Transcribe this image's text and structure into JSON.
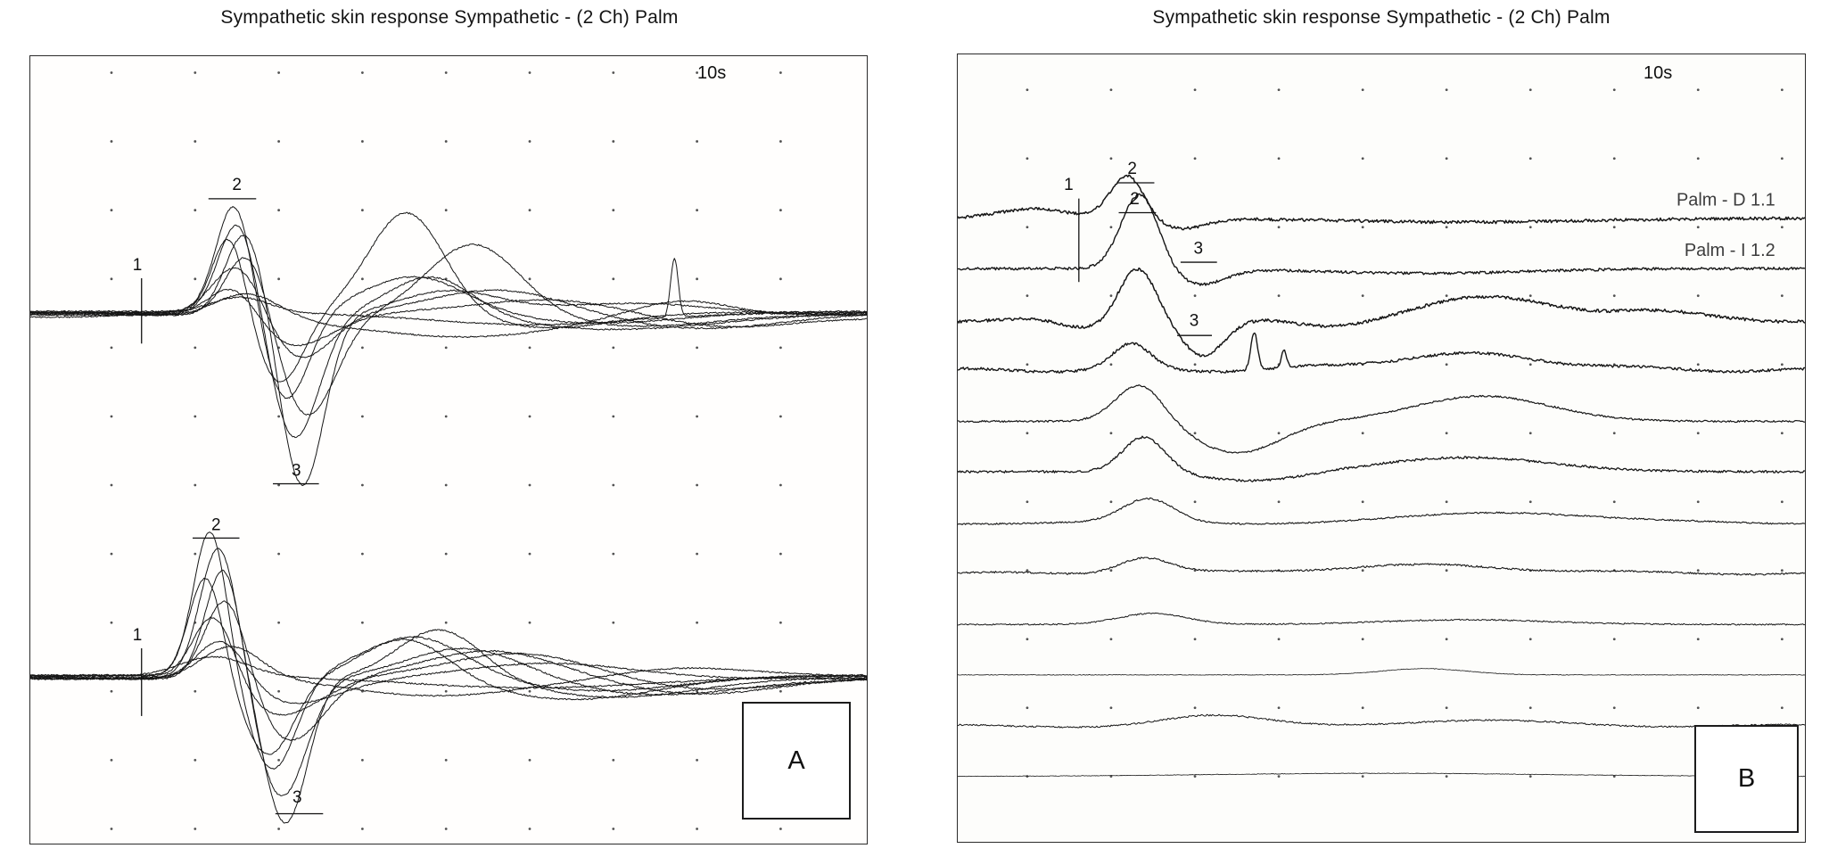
{
  "figure": {
    "background": "#ffffff",
    "trace_color": "#161616",
    "dot_color": "#343434"
  },
  "chart_data": [
    {
      "type": "line",
      "panel_label": "A",
      "title": "Sympathetic skin response Sympathetic - (2 Ch) Palm",
      "time_scale_label": "10s",
      "x_axis": {
        "span_seconds": 10,
        "divisions": 10
      },
      "grid": {
        "cols": 9,
        "rows": 12,
        "x0": 0.097,
        "dx": 0.1,
        "y0": 0.021,
        "dy": 0.0873,
        "dot_color": "#343434"
      },
      "stroke": "#161616",
      "markers": [
        {
          "label": "1",
          "x": 0.128,
          "y": 0.272,
          "line": {
            "type": "v",
            "x": 0.133,
            "y1": 0.282,
            "y2": 0.365
          }
        },
        {
          "label": "2",
          "x": 0.247,
          "y": 0.17,
          "line": {
            "type": "h",
            "x1": 0.213,
            "x2": 0.27,
            "y": 0.181
          }
        },
        {
          "label": "3",
          "x": 0.318,
          "y": 0.533,
          "line": {
            "type": "h",
            "x1": 0.29,
            "x2": 0.345,
            "y": 0.543
          }
        },
        {
          "label": "1",
          "x": 0.128,
          "y": 0.742,
          "line": {
            "type": "v",
            "x": 0.133,
            "y1": 0.752,
            "y2": 0.838
          }
        },
        {
          "label": "2",
          "x": 0.222,
          "y": 0.602,
          "line": {
            "type": "h",
            "x1": 0.194,
            "x2": 0.25,
            "y": 0.612
          }
        },
        {
          "label": "3",
          "x": 0.319,
          "y": 0.948,
          "line": {
            "type": "h",
            "x1": 0.293,
            "x2": 0.35,
            "y": 0.962
          }
        }
      ],
      "traces": [
        {
          "base": 0.324,
          "w": 1.0,
          "noise": 0.8,
          "seed": 11,
          "comp": [
            [
              0.245,
              0.022,
              -0.143
            ],
            [
              0.305,
              0.028,
              0.115
            ],
            [
              0.46,
              0.06,
              -0.045
            ],
            [
              0.68,
              0.1,
              0.015
            ]
          ]
        },
        {
          "base": 0.327,
          "w": 1.0,
          "noise": 0.8,
          "seed": 12,
          "comp": [
            [
              0.25,
              0.024,
              -0.125
            ],
            [
              0.315,
              0.03,
              0.16
            ],
            [
              0.48,
              0.05,
              -0.05
            ],
            [
              0.7,
              0.12,
              0.02
            ]
          ]
        },
        {
          "base": 0.329,
          "w": 1.0,
          "noise": 0.8,
          "seed": 13,
          "comp": [
            [
              0.258,
              0.024,
              -0.108
            ],
            [
              0.325,
              0.026,
              0.218
            ],
            [
              0.5,
              0.06,
              -0.03
            ],
            [
              0.72,
              0.1,
              -0.015
            ]
          ]
        },
        {
          "base": 0.325,
          "w": 1.0,
          "noise": 0.8,
          "seed": 14,
          "comp": [
            [
              0.238,
              0.02,
              -0.1
            ],
            [
              0.298,
              0.028,
              0.09
            ],
            [
              0.45,
              0.045,
              -0.128
            ],
            [
              0.62,
              0.08,
              0.02
            ]
          ]
        },
        {
          "base": 0.328,
          "w": 1.0,
          "noise": 0.8,
          "seed": 15,
          "comp": [
            [
              0.262,
              0.026,
              -0.088
            ],
            [
              0.33,
              0.035,
              0.13
            ],
            [
              0.53,
              0.055,
              -0.09
            ],
            [
              0.73,
              0.09,
              0.015
            ]
          ]
        },
        {
          "base": 0.326,
          "w": 1.0,
          "noise": 0.8,
          "seed": 16,
          "comp": [
            [
              0.25,
              0.03,
              -0.068
            ],
            [
              0.32,
              0.04,
              0.06
            ],
            [
              0.56,
              0.08,
              -0.03
            ],
            [
              0.8,
              0.1,
              0.02
            ]
          ]
        },
        {
          "base": 0.33,
          "w": 1.0,
          "noise": 0.8,
          "seed": 17,
          "wander": [
            1.4,
            4,
            0.15
          ],
          "comp": [
            [
              0.245,
              0.03,
              -0.05
            ],
            [
              0.31,
              0.05,
              0.04
            ],
            [
              0.6,
              0.1,
              -0.02
            ],
            [
              0.85,
              0.08,
              0.015
            ]
          ]
        },
        {
          "base": 0.327,
          "w": 1.0,
          "noise": 0.8,
          "seed": 18,
          "wander": [
            1.8,
            3,
            0.6
          ],
          "comp": [
            [
              0.26,
              0.04,
              -0.034
            ],
            [
              0.5,
              0.15,
              0.028
            ],
            [
              0.78,
              0.06,
              -0.02
            ]
          ]
        },
        {
          "base": 0.326,
          "w": 1.0,
          "noise": 0.8,
          "seed": 19,
          "comp": [
            [
              0.25,
              0.035,
              -0.02
            ],
            [
              0.77,
              0.0045,
              -0.075
            ],
            [
              0.6,
              0.12,
              0.015
            ]
          ]
        },
        {
          "base": 0.786,
          "w": 1.0,
          "noise": 0.8,
          "seed": 21,
          "comp": [
            [
              0.215,
              0.02,
              -0.185
            ],
            [
              0.29,
              0.028,
              0.12
            ],
            [
              0.46,
              0.06,
              -0.05
            ],
            [
              0.68,
              0.1,
              0.02
            ]
          ]
        },
        {
          "base": 0.789,
          "w": 1.0,
          "noise": 0.8,
          "seed": 22,
          "comp": [
            [
              0.225,
              0.022,
              -0.165
            ],
            [
              0.305,
              0.026,
              0.185
            ],
            [
              0.49,
              0.05,
              -0.063
            ],
            [
              0.7,
              0.1,
              0.025
            ]
          ]
        },
        {
          "base": 0.791,
          "w": 1.0,
          "noise": 0.8,
          "seed": 23,
          "comp": [
            [
              0.232,
              0.022,
              -0.148
            ],
            [
              0.3,
              0.03,
              0.15
            ],
            [
              0.52,
              0.07,
              -0.04
            ],
            [
              0.75,
              0.1,
              0.02
            ]
          ]
        },
        {
          "base": 0.787,
          "w": 1.0,
          "noise": 0.8,
          "seed": 24,
          "comp": [
            [
              0.21,
              0.02,
              -0.128
            ],
            [
              0.285,
              0.03,
              0.1
            ],
            [
              0.45,
              0.05,
              -0.05
            ],
            [
              0.65,
              0.1,
              0.03
            ]
          ]
        },
        {
          "base": 0.79,
          "w": 1.0,
          "noise": 0.8,
          "seed": 25,
          "comp": [
            [
              0.235,
              0.025,
              -0.11
            ],
            [
              0.31,
              0.04,
              0.08
            ],
            [
              0.55,
              0.08,
              -0.035
            ],
            [
              0.8,
              0.09,
              0.02
            ]
          ]
        },
        {
          "base": 0.788,
          "w": 1.0,
          "noise": 0.8,
          "seed": 26,
          "wander": [
            1.5,
            4,
            0.4
          ],
          "comp": [
            [
              0.22,
              0.025,
              -0.09
            ],
            [
              0.3,
              0.05,
              0.05
            ],
            [
              0.58,
              0.09,
              -0.028
            ],
            [
              0.82,
              0.08,
              0.018
            ]
          ]
        },
        {
          "base": 0.791,
          "w": 1.0,
          "noise": 0.8,
          "seed": 27,
          "comp": [
            [
              0.23,
              0.03,
              -0.06
            ],
            [
              0.31,
              0.06,
              0.032
            ],
            [
              0.62,
              0.1,
              -0.02
            ]
          ]
        },
        {
          "base": 0.789,
          "w": 1.0,
          "noise": 0.8,
          "seed": 28,
          "wander": [
            1.6,
            3,
            0.9
          ],
          "comp": [
            [
              0.24,
              0.035,
              -0.04
            ],
            [
              0.5,
              0.12,
              0.022
            ],
            [
              0.78,
              0.08,
              -0.015
            ]
          ]
        },
        {
          "base": 0.787,
          "w": 1.0,
          "noise": 0.8,
          "seed": 29,
          "comp": [
            [
              0.22,
              0.04,
              -0.025
            ],
            [
              0.6,
              0.15,
              0.015
            ]
          ]
        }
      ]
    },
    {
      "type": "line",
      "panel_label": "B",
      "title": "Sympathetic skin response Sympathetic - (2 Ch) Palm",
      "time_scale_label": "10s",
      "x_axis": {
        "span_seconds": 10,
        "divisions": 10
      },
      "grid": {
        "cols": 10,
        "rows": 11,
        "x0": 0.082,
        "dx": 0.099,
        "y0": 0.045,
        "dy": 0.0872,
        "dot_color": "#343434"
      },
      "stroke": "#161616",
      "markers": [
        {
          "label": "1",
          "x": 0.131,
          "y": 0.172,
          "line": {
            "type": "v",
            "x": 0.143,
            "y1": 0.183,
            "y2": 0.289
          }
        },
        {
          "label": "2",
          "x": 0.206,
          "y": 0.152,
          "line": {
            "type": "h",
            "x1": 0.188,
            "x2": 0.232,
            "y": 0.163
          }
        },
        {
          "label": "2",
          "x": 0.209,
          "y": 0.19,
          "line": {
            "type": "h",
            "x1": 0.19,
            "x2": 0.234,
            "y": 0.201
          }
        },
        {
          "label": "3",
          "x": 0.284,
          "y": 0.253,
          "line": {
            "type": "h",
            "x1": 0.263,
            "x2": 0.306,
            "y": 0.264
          }
        },
        {
          "label": "3",
          "x": 0.279,
          "y": 0.345,
          "line": {
            "type": "h",
            "x1": 0.259,
            "x2": 0.3,
            "y": 0.357
          }
        }
      ],
      "traces": [
        {
          "base": 0.208,
          "w": 1.5,
          "noise": 1.7,
          "seed": 101,
          "label": "Palm - D 1.1",
          "label_x": 0.965,
          "label_y": 0.192,
          "comp": [
            [
              0.09,
              0.04,
              -0.012
            ],
            [
              0.2,
              0.02,
              -0.055
            ],
            [
              0.262,
              0.03,
              0.013
            ],
            [
              0.6,
              0.15,
              0.005
            ]
          ]
        },
        {
          "base": 0.272,
          "w": 1.4,
          "noise": 1.5,
          "seed": 102,
          "label": "Palm - I 1.2",
          "label_x": 0.965,
          "label_y": 0.256,
          "comp": [
            [
              0.215,
              0.022,
              -0.095
            ],
            [
              0.285,
              0.03,
              0.02
            ],
            [
              0.55,
              0.12,
              0.006
            ]
          ]
        },
        {
          "base": 0.337,
          "w": 1.5,
          "noise": 1.7,
          "seed": 103,
          "wander": [
            2.2,
            4,
            0.3
          ],
          "comp": [
            [
              0.15,
              0.03,
              0.012
            ],
            [
              0.212,
              0.022,
              -0.068
            ],
            [
              0.29,
              0.025,
              0.045
            ],
            [
              0.44,
              0.05,
              0.01
            ],
            [
              0.63,
              0.09,
              -0.027
            ],
            [
              0.82,
              0.05,
              -0.008
            ]
          ]
        },
        {
          "base": 0.401,
          "w": 1.4,
          "noise": 1.5,
          "seed": 104,
          "wander": [
            1.8,
            5,
            0.7
          ],
          "comp": [
            [
              0.205,
              0.022,
              -0.032
            ],
            [
              0.35,
              0.004,
              -0.048
            ],
            [
              0.385,
              0.003,
              -0.022
            ],
            [
              0.6,
              0.1,
              -0.02
            ]
          ]
        },
        {
          "base": 0.466,
          "w": 1.2,
          "noise": 1.0,
          "seed": 105,
          "comp": [
            [
              0.215,
              0.028,
              -0.048
            ],
            [
              0.33,
              0.05,
              0.04
            ],
            [
              0.62,
              0.08,
              -0.032
            ]
          ]
        },
        {
          "base": 0.53,
          "w": 1.3,
          "noise": 1.3,
          "seed": 106,
          "comp": [
            [
              0.22,
              0.025,
              -0.045
            ],
            [
              0.35,
              0.06,
              0.012
            ],
            [
              0.6,
              0.1,
              -0.018
            ]
          ]
        },
        {
          "base": 0.595,
          "w": 1.1,
          "noise": 0.9,
          "seed": 107,
          "wander": [
            1.2,
            3,
            0.2
          ],
          "comp": [
            [
              0.225,
              0.03,
              -0.03
            ],
            [
              0.65,
              0.1,
              -0.014
            ]
          ]
        },
        {
          "base": 0.659,
          "w": 1.1,
          "noise": 1.0,
          "seed": 108,
          "wander": [
            1.3,
            4,
            0.55
          ],
          "comp": [
            [
              0.22,
              0.03,
              -0.02
            ],
            [
              0.55,
              0.12,
              -0.01
            ]
          ]
        },
        {
          "base": 0.724,
          "w": 1.0,
          "noise": 0.8,
          "seed": 109,
          "comp": [
            [
              0.23,
              0.04,
              -0.014
            ],
            [
              0.6,
              0.1,
              -0.006
            ]
          ]
        },
        {
          "base": 0.788,
          "w": 0.8,
          "noise": 0.35,
          "seed": 110,
          "comp": [
            [
              0.55,
              0.05,
              -0.008
            ]
          ]
        },
        {
          "base": 0.853,
          "w": 1.0,
          "noise": 0.9,
          "seed": 111,
          "wander": [
            1.5,
            3,
            0.8
          ],
          "comp": [
            [
              0.3,
              0.06,
              -0.012
            ],
            [
              0.6,
              0.12,
              -0.006
            ]
          ]
        },
        {
          "base": 0.917,
          "w": 0.8,
          "noise": 0.3,
          "seed": 112,
          "comp": [
            [
              0.5,
              0.2,
              -0.004
            ]
          ]
        }
      ]
    }
  ]
}
